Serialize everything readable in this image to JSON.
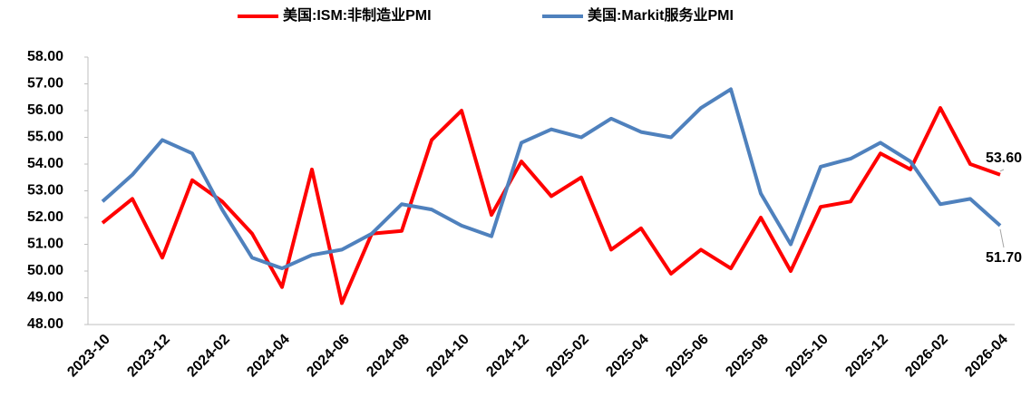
{
  "chart_data": {
    "type": "line",
    "categories": [
      "2023-10",
      null,
      "2023-12",
      null,
      "2024-02",
      null,
      "2024-04",
      null,
      "2024-06",
      null,
      "2024-08",
      null,
      "2024-10",
      null,
      "2024-12",
      null,
      "2025-02",
      null,
      "2025-04",
      null,
      "2025-06",
      null,
      "2025-08",
      null,
      "2025-10",
      null,
      "2025-12",
      null,
      "2026-02",
      null,
      "2026-04"
    ],
    "series": [
      {
        "name": "美国:ISM:非制造业PMI",
        "color": "#ff0000",
        "values": [
          51.8,
          52.7,
          50.5,
          53.4,
          52.6,
          51.4,
          49.4,
          53.8,
          48.8,
          51.4,
          51.5,
          54.9,
          56.0,
          52.1,
          54.1,
          52.8,
          53.5,
          50.8,
          51.6,
          49.9,
          50.8,
          50.1,
          52.0,
          50.0,
          52.4,
          52.6,
          54.4,
          53.8,
          56.1,
          54.0,
          53.6
        ],
        "value_labels": [
          null,
          null,
          null,
          null,
          null,
          null,
          null,
          null,
          null,
          null,
          null,
          null,
          null,
          null,
          null,
          null,
          null,
          null,
          null,
          null,
          null,
          null,
          null,
          null,
          null,
          null,
          null,
          null,
          null,
          null,
          "53.60"
        ]
      },
      {
        "name": "美国:Markit服务业PMI",
        "color": "#4f81bd",
        "values": [
          52.6,
          53.6,
          54.9,
          54.4,
          52.3,
          50.5,
          50.1,
          50.6,
          50.8,
          51.4,
          52.5,
          52.3,
          51.7,
          51.3,
          54.8,
          55.3,
          55.0,
          55.7,
          55.2,
          55.0,
          56.1,
          56.8,
          52.9,
          51.0,
          53.9,
          54.2,
          54.8,
          54.1,
          52.5,
          52.7,
          51.7
        ],
        "value_labels": [
          null,
          null,
          null,
          null,
          null,
          null,
          null,
          null,
          null,
          null,
          null,
          null,
          null,
          null,
          null,
          null,
          null,
          null,
          null,
          null,
          null,
          null,
          null,
          null,
          null,
          null,
          null,
          null,
          null,
          null,
          "51.70"
        ]
      }
    ],
    "ylim": [
      48,
      58
    ],
    "yticks": [
      {
        "value": 48,
        "label": "48.00"
      },
      {
        "value": 49,
        "label": "49.00"
      },
      {
        "value": 50,
        "label": "50.00"
      },
      {
        "value": 51,
        "label": "51.00"
      },
      {
        "value": 52,
        "label": "52.00"
      },
      {
        "value": 53,
        "label": "53.00"
      },
      {
        "value": 54,
        "label": "54.00"
      },
      {
        "value": 55,
        "label": "55.00"
      },
      {
        "value": 56,
        "label": "56.00"
      },
      {
        "value": 57,
        "label": "57.00"
      },
      {
        "value": 58,
        "label": "58.00"
      }
    ],
    "grid": false,
    "legend": "top"
  }
}
